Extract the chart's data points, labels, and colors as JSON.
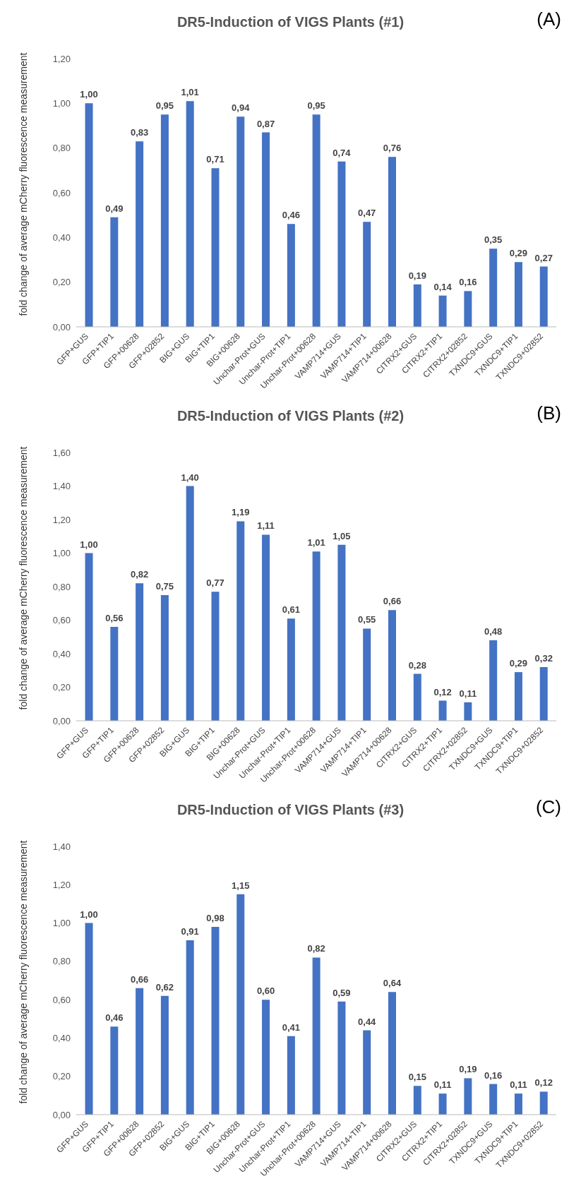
{
  "chart_data": [
    {
      "type": "bar",
      "title": "DR5-Induction of VIGS Plants (#1)",
      "annotations": [
        "(A)"
      ],
      "ylabel": "fold change of average mCherry fluorescence measurement",
      "color": "#4472c4",
      "grid": false,
      "categories": [
        "GFP+GUS",
        "GFP+TIP1",
        "GFP+00628",
        "GFP+02852",
        "BIG+GUS",
        "BIG+TIP1",
        "BIG+00628",
        "Unchar-Prot+GUS",
        "Unchar-Prot+TIP1",
        "Unchar-Prot+00628",
        "VAMP714+GUS",
        "VAMP714+TIP1",
        "VAMP714+00628",
        "CITRX2+GUS",
        "CITRX2+TIP1",
        "CITRX2+02852",
        "TXNDC9+GUS",
        "TXNDC9+TIP1",
        "TXNDC9+02852"
      ],
      "values": [
        1.0,
        0.49,
        0.83,
        0.95,
        1.01,
        0.71,
        0.94,
        0.87,
        0.46,
        0.95,
        0.74,
        0.47,
        0.76,
        0.19,
        0.14,
        0.16,
        0.35,
        0.29,
        0.27
      ],
      "value_labels": [
        "1,00",
        "0,49",
        "0,83",
        "0,95",
        "1,01",
        "0,71",
        "0,94",
        "0,87",
        "0,46",
        "0,95",
        "0,74",
        "0,47",
        "0,76",
        "0,19",
        "0,14",
        "0,16",
        "0,35",
        "0,29",
        "0,27"
      ],
      "ylim": [
        0,
        1.2
      ],
      "yticks": [
        {
          "value": 0,
          "label": "0,00"
        },
        {
          "value": 0.2,
          "label": "0,20"
        },
        {
          "value": 0.4,
          "label": "0,40"
        },
        {
          "value": 0.6,
          "label": "0,60"
        },
        {
          "value": 0.8,
          "label": "0,80"
        },
        {
          "value": 1.0,
          "label": "1,00"
        },
        {
          "value": 1.2,
          "label": "1,20"
        }
      ]
    },
    {
      "type": "bar",
      "title": "DR5-Induction of VIGS Plants (#2)",
      "annotations": [
        "(B)"
      ],
      "ylabel": "fold change of average mCherry fluorescence measurement",
      "color": "#4472c4",
      "grid": false,
      "categories": [
        "GFP+GUS",
        "GFP+TIP1",
        "GFP+00628",
        "GFP+02852",
        "BIG+GUS",
        "BIG+TIP1",
        "BIG+00628",
        "Unchar-Prot+GUS",
        "Unchar-Prot+TIP1",
        "Unchar-Prot+00628",
        "VAMP714+GUS",
        "VAMP714+TIP1",
        "VAMP714+00628",
        "CITRX2+GUS",
        "CITRX2+TIP1",
        "CITRX2+02852",
        "TXNDC9+GUS",
        "TXNDC9+TIP1",
        "TXNDC9+02852"
      ],
      "values": [
        1.0,
        0.56,
        0.82,
        0.75,
        1.4,
        0.77,
        1.19,
        1.11,
        0.61,
        1.01,
        1.05,
        0.55,
        0.66,
        0.28,
        0.12,
        0.11,
        0.48,
        0.29,
        0.32
      ],
      "value_labels": [
        "1,00",
        "0,56",
        "0,82",
        "0,75",
        "1,40",
        "0,77",
        "1,19",
        "1,11",
        "0,61",
        "1,01",
        "1,05",
        "0,55",
        "0,66",
        "0,28",
        "0,12",
        "0,11",
        "0,48",
        "0,29",
        "0,32"
      ],
      "ylim": [
        0,
        1.6
      ],
      "yticks": [
        {
          "value": 0,
          "label": "0,00"
        },
        {
          "value": 0.2,
          "label": "0,20"
        },
        {
          "value": 0.4,
          "label": "0,40"
        },
        {
          "value": 0.6,
          "label": "0,60"
        },
        {
          "value": 0.8,
          "label": "0,80"
        },
        {
          "value": 1.0,
          "label": "1,00"
        },
        {
          "value": 1.2,
          "label": "1,20"
        },
        {
          "value": 1.4,
          "label": "1,40"
        },
        {
          "value": 1.6,
          "label": "1,60"
        }
      ]
    },
    {
      "type": "bar",
      "title": "DR5-Induction of VIGS Plants (#3)",
      "annotations": [
        "(C)"
      ],
      "ylabel": "fold change of average mCherry fluorescence measurement",
      "color": "#4472c4",
      "grid": false,
      "categories": [
        "GFP+GUS",
        "GFP+TIP1",
        "GFP+00628",
        "GFP+02852",
        "BIG+GUS",
        "BIG+TIP1",
        "BIG+00628",
        "Unchar-Prot+GUS",
        "Unchar-Prot+TIP1",
        "Unchar-Prot+00628",
        "VAMP714+GUS",
        "VAMP714+TIP1",
        "VAMP714+00628",
        "CITRX2+GUS",
        "CITRX2+TIP1",
        "CITRX2+02852",
        "TXNDC9+GUS",
        "TXNDC9+TIP1",
        "TXNDC9+02852"
      ],
      "values": [
        1.0,
        0.46,
        0.66,
        0.62,
        0.91,
        0.98,
        1.15,
        0.6,
        0.41,
        0.82,
        0.59,
        0.44,
        0.64,
        0.15,
        0.11,
        0.19,
        0.16,
        0.11,
        0.12
      ],
      "value_labels": [
        "1,00",
        "0,46",
        "0,66",
        "0,62",
        "0,91",
        "0,98",
        "1,15",
        "0,60",
        "0,41",
        "0,82",
        "0,59",
        "0,44",
        "0,64",
        "0,15",
        "0,11",
        "0,19",
        "0,16",
        "0,11",
        "0,12"
      ],
      "ylim": [
        0,
        1.4
      ],
      "yticks": [
        {
          "value": 0,
          "label": "0,00"
        },
        {
          "value": 0.2,
          "label": "0,20"
        },
        {
          "value": 0.4,
          "label": "0,40"
        },
        {
          "value": 0.6,
          "label": "0,60"
        },
        {
          "value": 0.8,
          "label": "0,80"
        },
        {
          "value": 1.0,
          "label": "1,00"
        },
        {
          "value": 1.2,
          "label": "1,20"
        },
        {
          "value": 1.4,
          "label": "1,40"
        }
      ]
    }
  ]
}
